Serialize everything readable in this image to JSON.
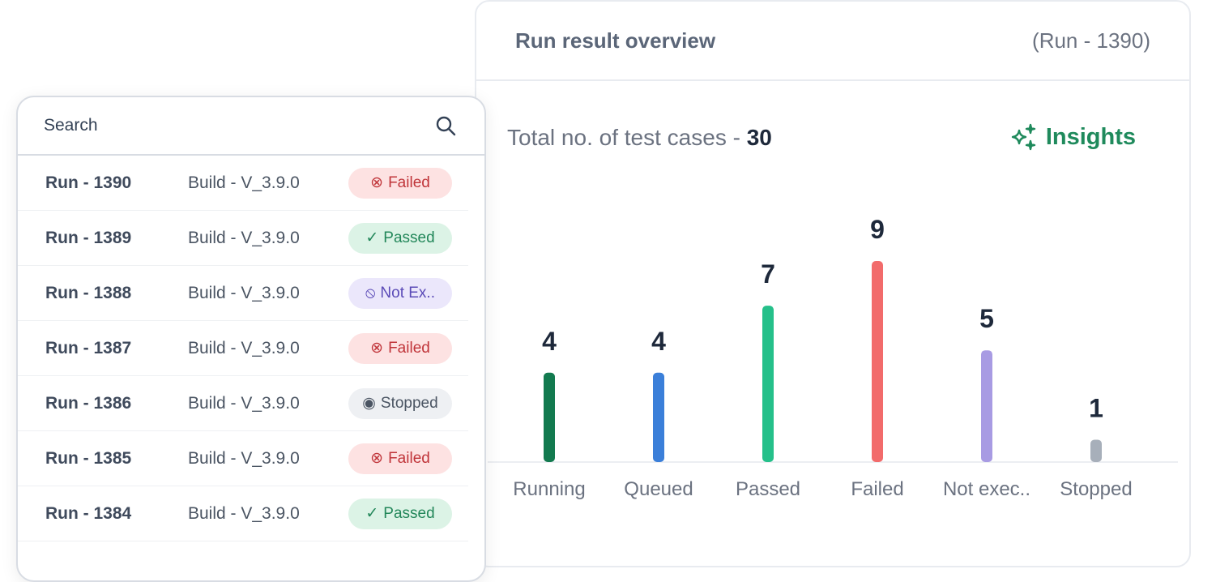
{
  "card": {
    "title": "Run result overview",
    "run": "(Run - 1390)",
    "total_label": "Total no. of test cases - ",
    "total_value": "30",
    "insights": "Insights",
    "accent": "#1f8a5c"
  },
  "search": {
    "placeholder": "Search"
  },
  "runs": [
    {
      "run": "Run - 1390",
      "build": "Build - V_3.9.0",
      "status": "Failed",
      "icon": "x-circle-icon"
    },
    {
      "run": "Run - 1389",
      "build": "Build - V_3.9.0",
      "status": "Passed",
      "icon": "check-circle-icon"
    },
    {
      "run": "Run - 1388",
      "build": "Build - V_3.9.0",
      "status": "Not Ex..",
      "icon": "ban-icon"
    },
    {
      "run": "Run - 1387",
      "build": "Build - V_3.9.0",
      "status": "Failed",
      "icon": "x-circle-icon"
    },
    {
      "run": "Run - 1386",
      "build": "Build - V_3.9.0",
      "status": "Stopped",
      "icon": "stop-circle-icon"
    },
    {
      "run": "Run - 1385",
      "build": "Build - V_3.9.0",
      "status": "Failed",
      "icon": "x-circle-icon"
    },
    {
      "run": "Run - 1384",
      "build": "Build - V_3.9.0",
      "status": "Passed",
      "icon": "check-circle-icon"
    }
  ],
  "badge_styles": {
    "Failed": {
      "bg": "#fde2e2",
      "fg": "#c0353a",
      "glyph": "⊗"
    },
    "Passed": {
      "bg": "#dcf3e6",
      "fg": "#23875a",
      "glyph": "✓"
    },
    "Not Ex..": {
      "bg": "#ebe7fb",
      "fg": "#5b4bb7",
      "glyph": "⦸"
    },
    "Stopped": {
      "bg": "#eef0f3",
      "fg": "#4b5563",
      "glyph": "◉"
    }
  },
  "chart_data": {
    "type": "bar",
    "categories": [
      "Running",
      "Queued",
      "Passed",
      "Failed",
      "Not exec..",
      "Stopped"
    ],
    "values": [
      4,
      4,
      7,
      9,
      5,
      1
    ],
    "colors": [
      "#137a4f",
      "#3b7fd9",
      "#25c08a",
      "#f26b6b",
      "#a89be3",
      "#a7afba"
    ],
    "ylim": [
      0,
      9
    ]
  }
}
